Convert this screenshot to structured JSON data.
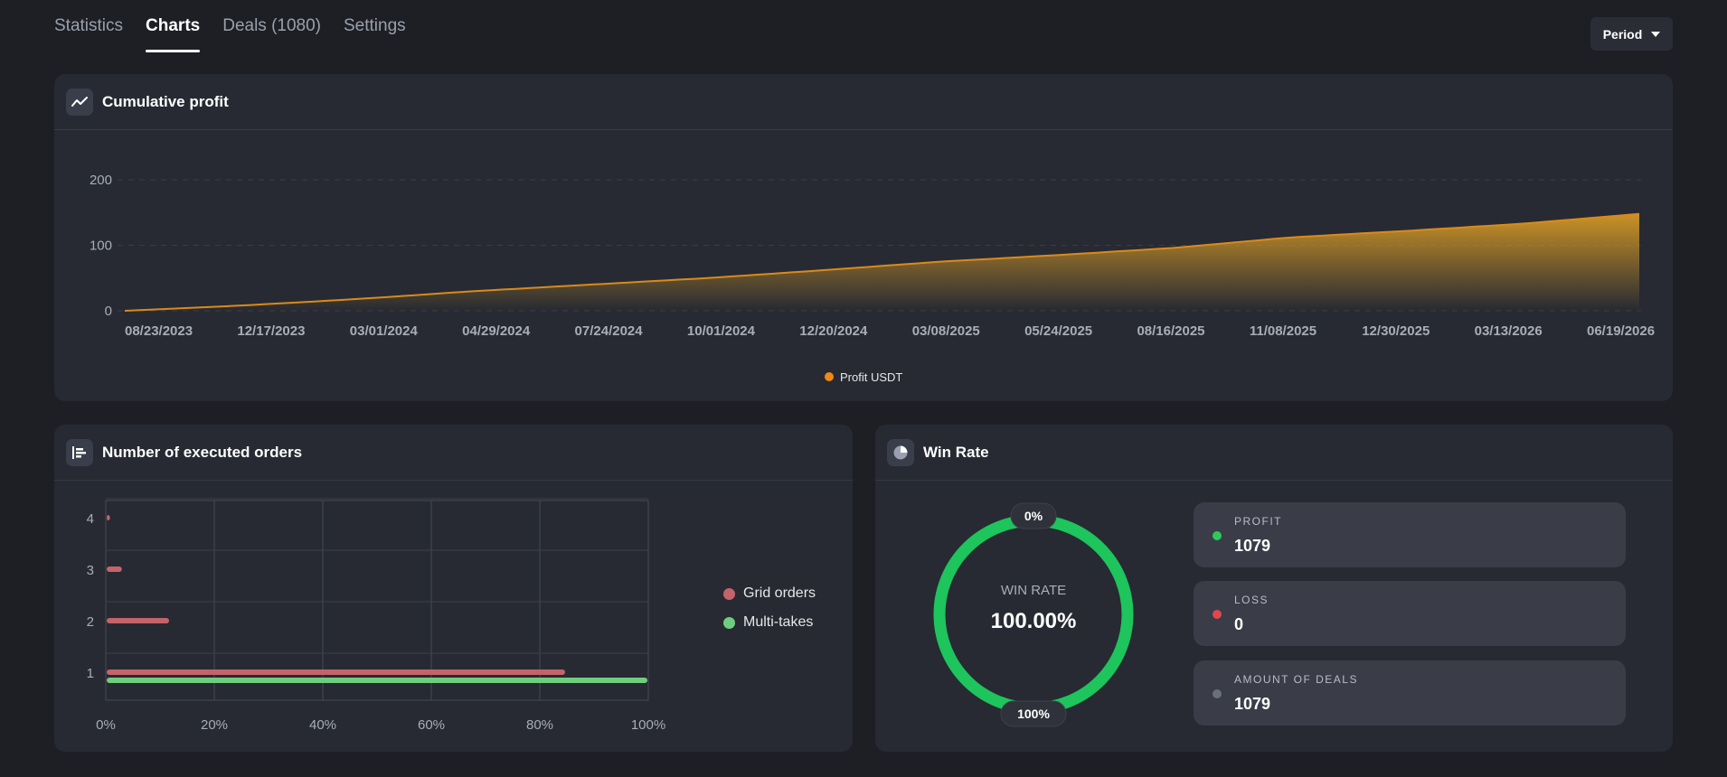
{
  "tabs": [
    {
      "label": "Statistics"
    },
    {
      "label": "Charts"
    },
    {
      "label": "Deals (1080)"
    },
    {
      "label": "Settings"
    }
  ],
  "period_label": "Period",
  "cumulative": {
    "title": "Cumulative profit",
    "legend_label": "Profit USDT",
    "accent": "#f0a21a",
    "y_ticks": [
      "200",
      "100",
      "0"
    ],
    "x_ticks": [
      "08/23/2023",
      "12/17/2023",
      "03/01/2024",
      "04/29/2024",
      "07/24/2024",
      "10/01/2024",
      "12/20/2024",
      "03/08/2025",
      "05/24/2025",
      "08/16/2025",
      "11/08/2025",
      "12/30/2025",
      "03/13/2026",
      "06/19/2026"
    ]
  },
  "orders": {
    "title": "Number of executed orders",
    "legend": [
      {
        "label": "Grid orders",
        "color": "#c4646a"
      },
      {
        "label": "Multi-takes",
        "color": "#6fce7e"
      }
    ],
    "y_ticks": [
      "4",
      "3",
      "2",
      "1"
    ],
    "x_ticks": [
      "0%",
      "20%",
      "40%",
      "60%",
      "80%",
      "100%"
    ]
  },
  "win_rate": {
    "title": "Win Rate",
    "center_label": "WIN RATE",
    "center_value": "100.00%",
    "top_badge": "0%",
    "bottom_badge": "100%",
    "ring_color": "#1ec45c",
    "stats": [
      {
        "label": "PROFIT",
        "value": "1079",
        "color": "#2fc95a"
      },
      {
        "label": "LOSS",
        "value": "0",
        "color": "#e0474c"
      },
      {
        "label": "AMOUNT OF DEALS",
        "value": "1079",
        "color": "#6b6f7a"
      }
    ]
  },
  "chart_data": [
    {
      "type": "area",
      "series": [
        {
          "name": "Profit USDT",
          "x_ticks_dates": [
            "08/23/2023",
            "12/17/2023",
            "03/01/2024",
            "04/29/2024",
            "07/24/2024",
            "10/01/2024",
            "12/20/2024",
            "03/08/2025",
            "05/24/2025",
            "08/16/2025",
            "11/08/2025",
            "12/30/2025",
            "03/13/2026",
            "06/19/2026"
          ],
          "values": [
            0,
            8,
            18,
            30,
            40,
            50,
            62,
            75,
            85,
            96,
            112,
            122,
            133,
            148
          ]
        }
      ],
      "ylim": [
        0,
        200
      ],
      "y_ticks": [
        0,
        100,
        200
      ],
      "legend": "bottom-center",
      "grid": true
    },
    {
      "type": "bar",
      "orientation": "horizontal",
      "categories": [
        "1",
        "2",
        "3",
        "4"
      ],
      "series": [
        {
          "name": "Grid orders",
          "values": [
            84.5,
            11.5,
            2.8,
            0.6
          ]
        },
        {
          "name": "Multi-takes",
          "values": [
            100,
            0,
            0,
            0
          ]
        }
      ],
      "xlim": [
        0,
        100
      ],
      "x_unit": "%",
      "legend": "right",
      "grid": true
    },
    {
      "type": "pie",
      "categories": [
        "Profit",
        "Loss"
      ],
      "values": [
        100,
        0
      ],
      "legend": "none"
    }
  ]
}
